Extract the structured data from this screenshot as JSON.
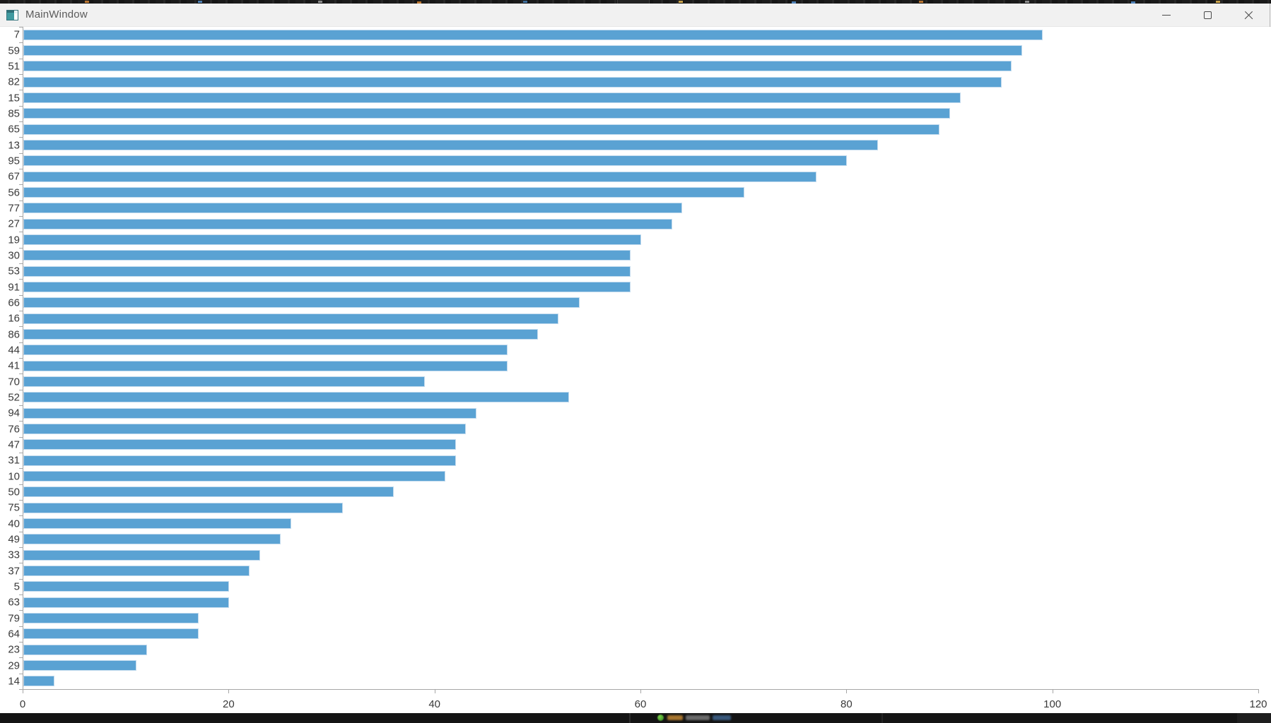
{
  "window": {
    "title": "MainWindow",
    "controls": {
      "minimize": "minimize",
      "maximize": "maximize",
      "close": "close"
    }
  },
  "chart_data": {
    "type": "bar",
    "orientation": "horizontal",
    "title": "",
    "xlabel": "",
    "ylabel": "",
    "categories": [
      "7",
      "59",
      "51",
      "82",
      "15",
      "85",
      "65",
      "13",
      "95",
      "67",
      "56",
      "77",
      "27",
      "19",
      "30",
      "53",
      "91",
      "66",
      "16",
      "86",
      "44",
      "41",
      "70",
      "52",
      "94",
      "76",
      "47",
      "31",
      "10",
      "50",
      "75",
      "40",
      "49",
      "33",
      "37",
      "5",
      "63",
      "79",
      "64",
      "23",
      "29",
      "14"
    ],
    "values": [
      99,
      97,
      96,
      95,
      91,
      90,
      89,
      83,
      80,
      77,
      70,
      64,
      63,
      60,
      59,
      59,
      59,
      54,
      52,
      50,
      47,
      47,
      39,
      53,
      44,
      43,
      42,
      42,
      41,
      36,
      31,
      26,
      25,
      23,
      22,
      20,
      20,
      17,
      17,
      12,
      11,
      3
    ],
    "x_ticks": [
      0,
      20,
      40,
      60,
      80,
      100,
      120
    ],
    "xlim": [
      0,
      120
    ],
    "grid": false,
    "legend": null,
    "bar_color": "#5aa2d3",
    "axis_color": "#a6a6a6",
    "tick_label_color": "#3a3a3a"
  }
}
